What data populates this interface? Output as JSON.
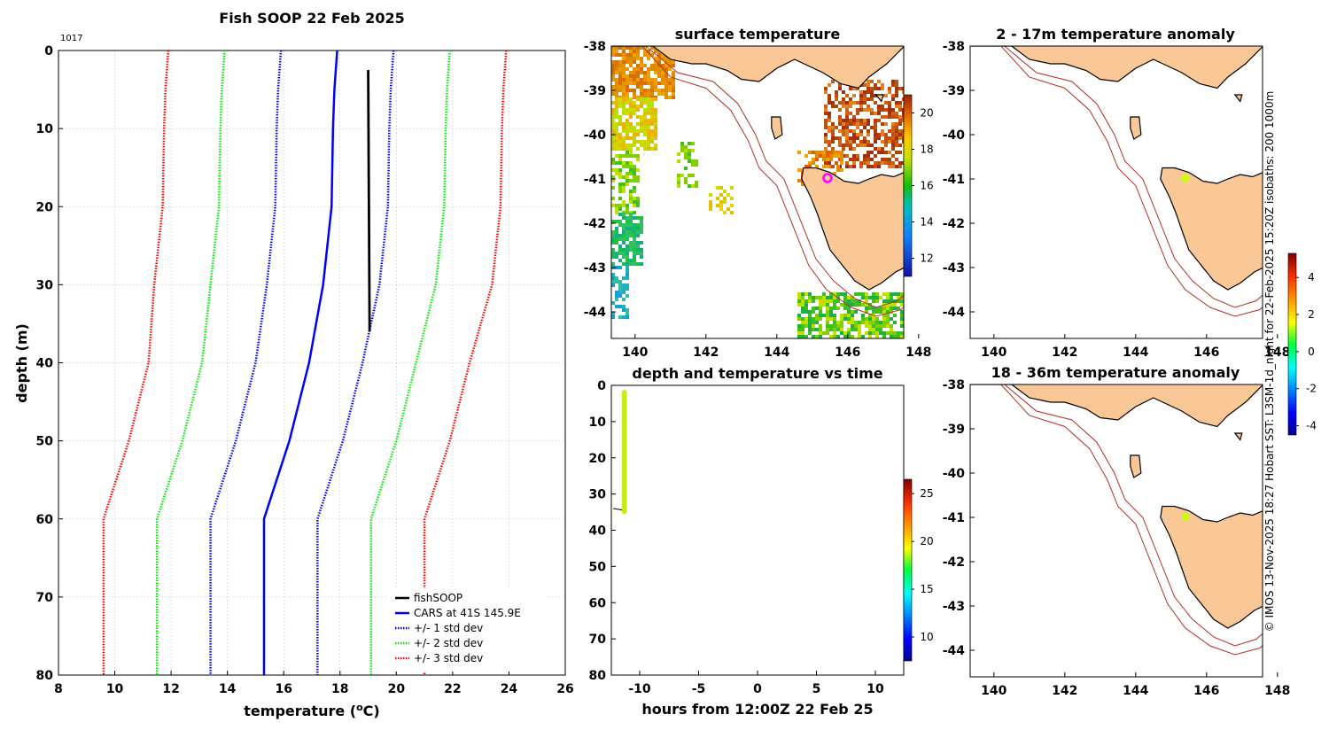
{
  "chart_data": [
    {
      "type": "line",
      "title": "Fish SOOP 22 Feb 2025",
      "id_label": "1017",
      "xlabel": "temperature (",
      "xlabel_unit": "o",
      "xlabel_end": "C)",
      "ylabel": "depth (m)",
      "xlim": [
        8,
        26
      ],
      "ylim": [
        80,
        0
      ],
      "xticks": [
        "8",
        "10",
        "12",
        "14",
        "16",
        "18",
        "20",
        "22",
        "24",
        "26"
      ],
      "yticks": [
        "0",
        "10",
        "20",
        "30",
        "40",
        "50",
        "60",
        "70",
        "80"
      ],
      "depths": [
        0,
        5,
        10,
        20,
        30,
        40,
        50,
        60,
        70,
        80
      ],
      "cars_mean": [
        17.9,
        17.8,
        17.75,
        17.7,
        17.4,
        16.9,
        16.2,
        15.3,
        15.3,
        15.3
      ],
      "std1": [
        2.0,
        2.0,
        2.0,
        2.0,
        2.0,
        1.9,
        1.9,
        1.9,
        1.9,
        1.9
      ],
      "series": [
        {
          "name": "fishSOOP",
          "color": "#000000",
          "depth": [
            2.5,
            36
          ],
          "temperature": [
            19.0,
            19.05
          ]
        },
        {
          "name": "CARS at 41S 145.9E",
          "color": "#0000ff"
        },
        {
          "name": "+/- 1 std dev",
          "color": "#0000ff"
        },
        {
          "name": "+/- 2 std dev",
          "color": "#00ee00"
        },
        {
          "name": "+/- 3 std dev",
          "color": "#ff0000"
        }
      ]
    },
    {
      "type": "heatmap",
      "title": "surface temperature",
      "xticks": [
        "140",
        "142",
        "144",
        "146",
        "148"
      ],
      "yticks": [
        "-38",
        "-39",
        "-40",
        "-41",
        "-42",
        "-43",
        "-44"
      ],
      "colorbar": {
        "ticks": [
          "20",
          "18",
          "16",
          "14",
          "12"
        ]
      }
    },
    {
      "type": "scatter",
      "title": "depth and temperature vs time",
      "xlabel": "hours from 12:00Z 22 Feb 25",
      "xticks": [
        "-10",
        "-5",
        "0",
        "5",
        "10"
      ],
      "yticks": [
        "0",
        "10",
        "20",
        "30",
        "40",
        "50",
        "60",
        "70",
        "80"
      ],
      "colorbar": {
        "ticks": [
          "25",
          "20",
          "15",
          "10"
        ]
      },
      "points": {
        "hours": -11.3,
        "depth_from": 2,
        "depth_to": 35,
        "temperature": 19.1
      }
    },
    {
      "type": "heatmap",
      "title": "2 - 17m temperature anomaly",
      "xticks": [
        "140",
        "142",
        "144",
        "146",
        "148"
      ],
      "yticks": [
        "-38",
        "-39",
        "-40",
        "-41",
        "-42",
        "-43",
        "-44"
      ],
      "colorbar": {
        "ticks": [
          "4",
          "2",
          "0",
          "-2",
          "-4"
        ]
      }
    },
    {
      "type": "heatmap",
      "title": "18 - 36m temperature anomaly",
      "xticks": [
        "140",
        "142",
        "144",
        "146",
        "148"
      ],
      "yticks": [
        "-38",
        "-39",
        "-40",
        "-41",
        "-42",
        "-43",
        "-44"
      ]
    }
  ],
  "footer": {
    "credit": "© IMOS 13-Nov-2025 18:27 Hobart SST: L3SM-1d_night for 22-Feb-2025 15:20Z isobaths: 200  1000m"
  },
  "colors": {
    "land": "#f9c896",
    "isobath": "#b03020",
    "grid": "#c8c8c8",
    "marker_magenta": "#ff00ff",
    "marker_yellow": "#ccff00"
  }
}
